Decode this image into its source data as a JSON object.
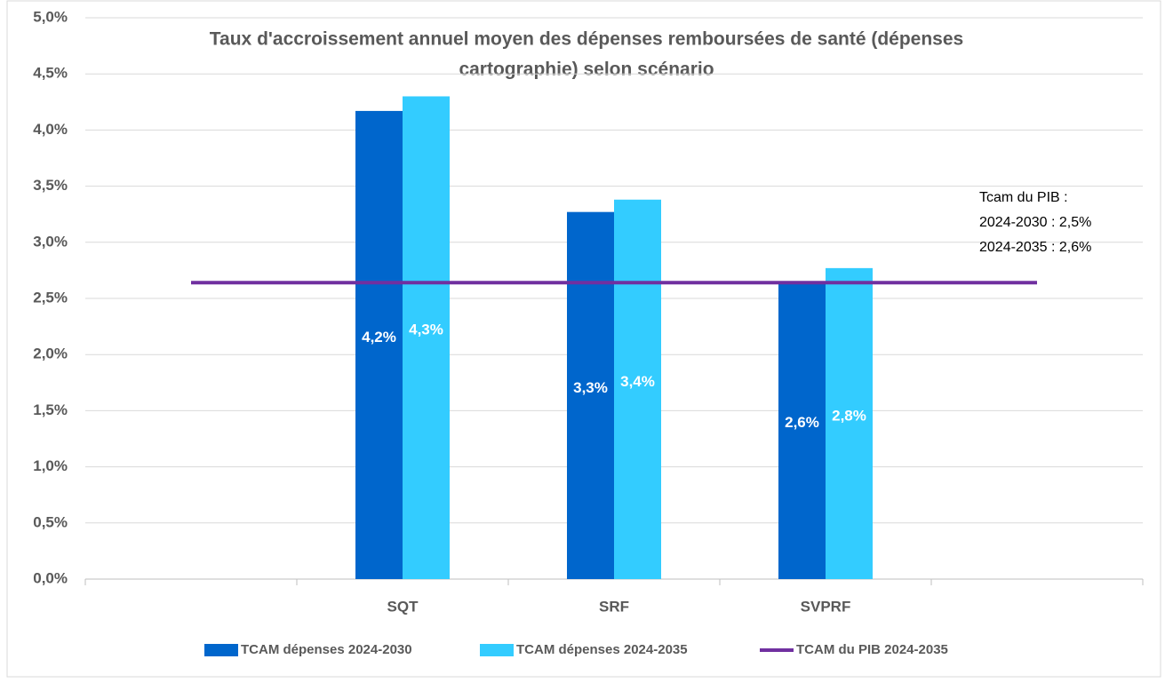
{
  "chart_data": {
    "type": "bar",
    "title": [
      "Taux d'accroissement annuel moyen des dépenses remboursées de santé (dépenses",
      "cartographie) selon scénario"
    ],
    "categories": [
      null,
      "SQT",
      "SRF",
      "SVPRF",
      null
    ],
    "series": [
      {
        "name": "TCAM dépenses 2024-2030",
        "color": "#0066cc",
        "type": "bar",
        "values": [
          null,
          4.17,
          3.27,
          2.65,
          null
        ],
        "value_labels": [
          null,
          "4,2%",
          "3,3%",
          "2,6%",
          null
        ]
      },
      {
        "name": "TCAM dépenses 2024-2035",
        "color": "#33ccff",
        "type": "bar",
        "values": [
          null,
          4.3,
          3.38,
          2.77,
          null
        ],
        "value_labels": [
          null,
          "4,3%",
          "3,4%",
          "2,8%",
          null
        ]
      },
      {
        "name": "TCAM du PIB 2024-2035",
        "color": "#7030a0",
        "type": "line",
        "values": [
          2.64,
          2.64,
          2.64,
          2.64,
          2.64
        ]
      }
    ],
    "ylim": [
      0,
      5
    ],
    "yticks": [
      {
        "value": 0,
        "label": "0,0%"
      },
      {
        "value": 0.5,
        "label": "0,5%"
      },
      {
        "value": 1,
        "label": "1,0%"
      },
      {
        "value": 1.5,
        "label": "1,5%"
      },
      {
        "value": 2,
        "label": "2,0%"
      },
      {
        "value": 2.5,
        "label": "2,5%"
      },
      {
        "value": 3,
        "label": "3,0%"
      },
      {
        "value": 3.5,
        "label": "3,5%"
      },
      {
        "value": 4,
        "label": "4,0%"
      },
      {
        "value": 4.5,
        "label": "4,5%"
      },
      {
        "value": 5,
        "label": "5,0%"
      }
    ],
    "grid": true,
    "legend": "bottom",
    "annotation": [
      "Tcam du PIB :",
      "2024-2030 : 2,5%",
      "2024-2035 : 2,6%"
    ]
  }
}
